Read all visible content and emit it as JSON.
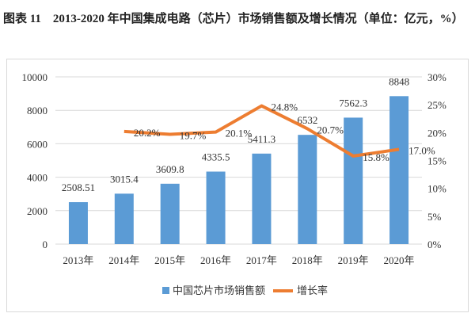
{
  "title": "图表 11　2013-2020 年中国集成电路（芯片）市场销售额及增长情况（单位：亿元，%）",
  "chart_data": {
    "type": "bar",
    "categories": [
      "2013年",
      "2014年",
      "2015年",
      "2016年",
      "2017年",
      "2018年",
      "2019年",
      "2020年"
    ],
    "series": [
      {
        "name": "中国芯片市场销售额",
        "type": "bar",
        "axis": "left",
        "color": "#5b9bd5",
        "values": [
          2508.51,
          3015.4,
          3609.8,
          4335.5,
          5411.3,
          6532,
          7562.3,
          8848
        ],
        "labels": [
          "2508.51",
          "3015.4",
          "3609.8",
          "4335.5",
          "5411.3",
          "6532",
          "7562.3",
          "8848"
        ]
      },
      {
        "name": "增长率",
        "type": "line",
        "axis": "right",
        "color": "#ed7d31",
        "values": [
          null,
          20.2,
          19.7,
          20.1,
          24.8,
          20.7,
          15.8,
          17.0
        ],
        "labels": [
          "",
          "20.2%",
          "19.7%",
          "20.1%",
          "24.8%",
          "20.7%",
          "15.8%",
          "17.0%"
        ]
      }
    ],
    "ylim": [
      0,
      10000
    ],
    "yticks": [
      "0",
      "2000",
      "4000",
      "6000",
      "8000",
      "10000"
    ],
    "y2lim": [
      0,
      30
    ],
    "y2ticks": [
      "0%",
      "5%",
      "10%",
      "15%",
      "20%",
      "25%",
      "30%"
    ],
    "grid": true,
    "legend": "bottom"
  }
}
